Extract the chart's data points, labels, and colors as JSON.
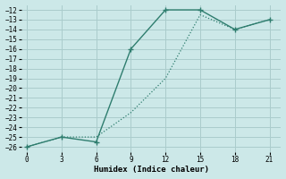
{
  "xlabel": "Humidex (Indice chaleur)",
  "background_color": "#cce8e8",
  "grid_color": "#aacccc",
  "line_color": "#2e7d6e",
  "x_dotted": [
    0,
    3,
    6,
    9,
    12,
    15,
    18,
    21
  ],
  "y_dotted": [
    -26,
    -25,
    -25,
    -22.5,
    -19,
    -12.5,
    -14,
    -13
  ],
  "x_solid": [
    0,
    3,
    6,
    9,
    12,
    15,
    18,
    21
  ],
  "y_solid": [
    -26,
    -25,
    -25.5,
    -16,
    -12,
    -12,
    -14,
    -13
  ],
  "xlim": [
    -0.5,
    22
  ],
  "ylim": [
    -26.5,
    -11.5
  ],
  "xticks": [
    0,
    3,
    6,
    9,
    12,
    15,
    18,
    21
  ],
  "yticks": [
    -26,
    -25,
    -24,
    -23,
    -22,
    -21,
    -20,
    -19,
    -18,
    -17,
    -16,
    -15,
    -14,
    -13,
    -12
  ]
}
